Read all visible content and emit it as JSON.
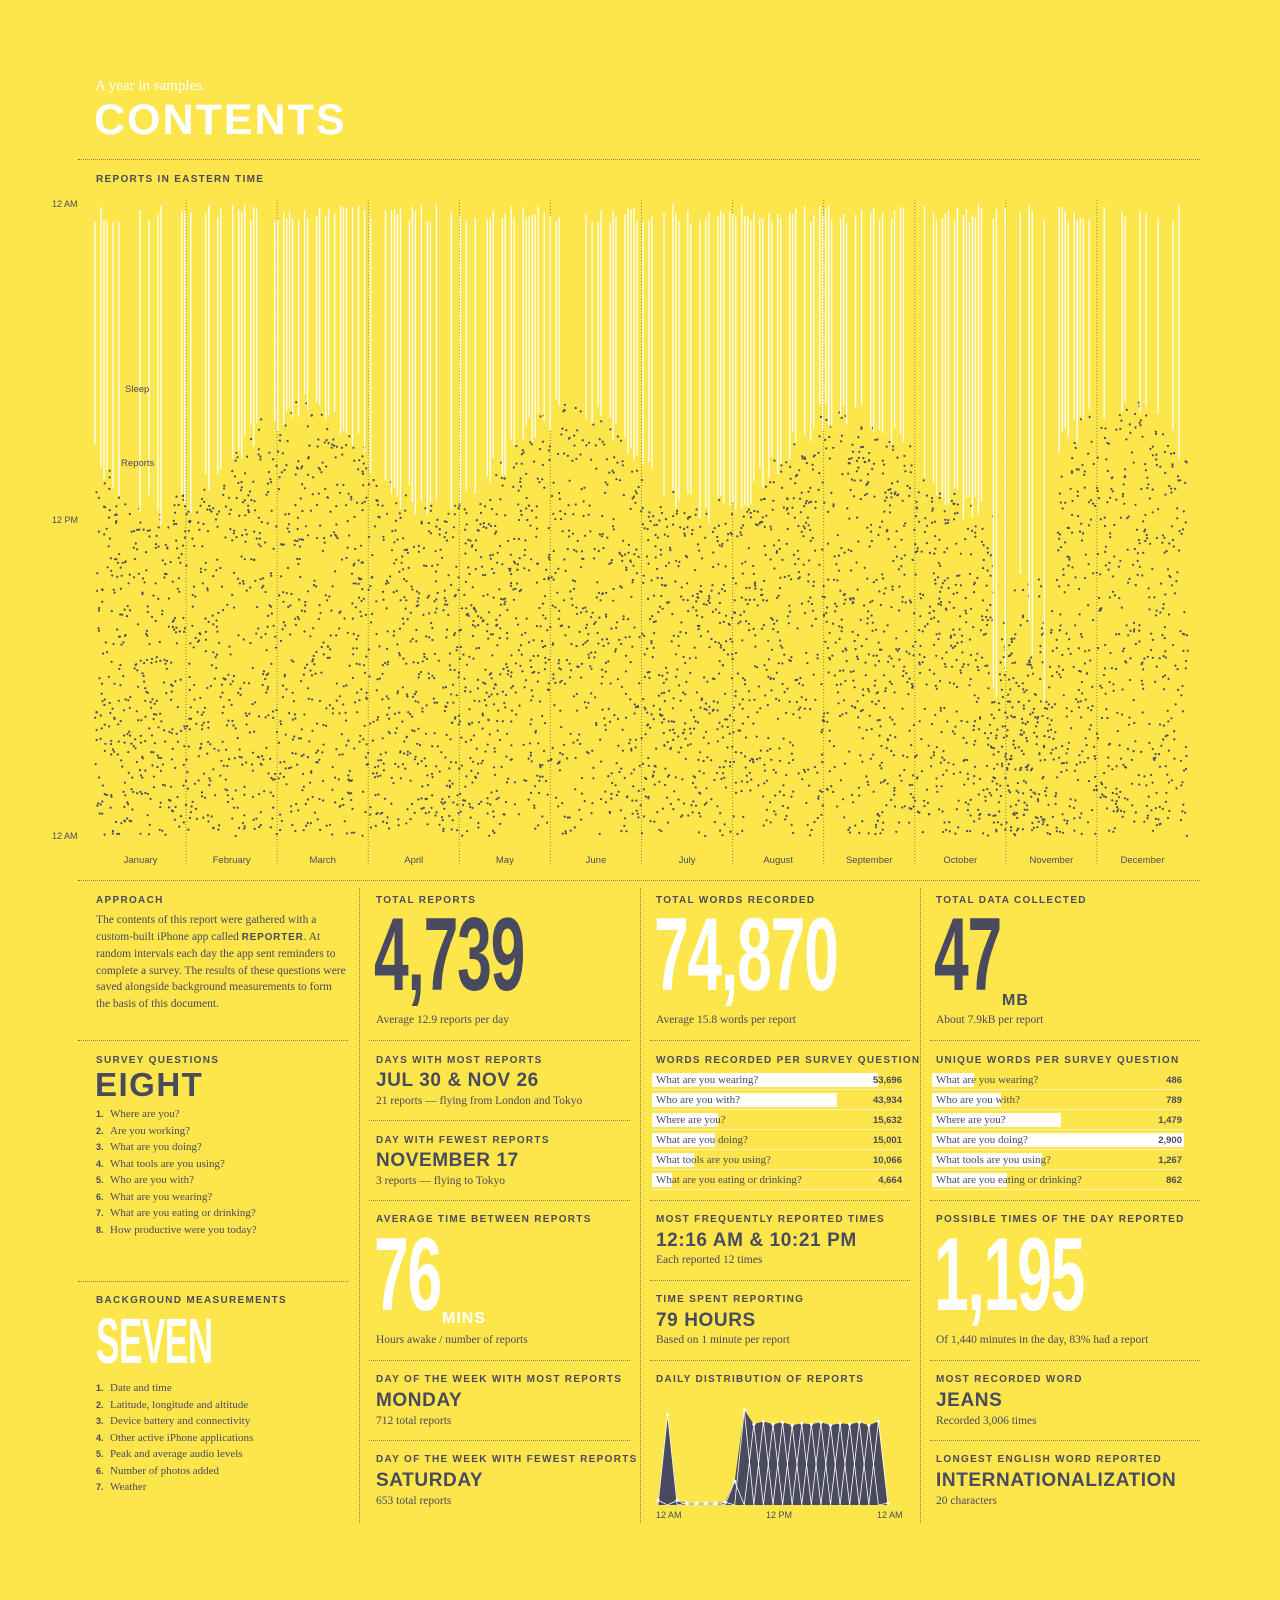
{
  "header": {
    "subtitle": "A year in samples.",
    "title": "CONTENTS"
  },
  "timeline": {
    "label": "REPORTS IN EASTERN TIME",
    "y_labels": [
      "12 AM",
      "12 PM",
      "12 AM"
    ],
    "months": [
      "January",
      "February",
      "March",
      "April",
      "May",
      "June",
      "July",
      "August",
      "September",
      "October",
      "November",
      "December"
    ],
    "legend_sleep": "Sleep",
    "legend_reports": "Reports"
  },
  "approach": {
    "label": "APPROACH",
    "text_a": "The contents of this report were gathered with a custom-built iPhone app called ",
    "app_name": "REPORTER",
    "text_b": ". At random intervals each day the app sent reminders to complete a survey. The results of these questions were saved alongside background measurements to form the basis of this document."
  },
  "survey": {
    "label": "SURVEY QUESTIONS",
    "count": "EIGHT",
    "items": [
      "Where are you?",
      "Are you working?",
      "What are you doing?",
      "What tools are you using?",
      "Who are you with?",
      "What are you wearing?",
      "What are you eating or drinking?",
      "How productive were you today?"
    ]
  },
  "background": {
    "label": "BACKGROUND MEASUREMENTS",
    "count": "SEVEN",
    "items": [
      "Date and time",
      "Latitude, longitude and altitude",
      "Device battery and connectivity",
      "Other active iPhone applications",
      "Peak and average audio levels",
      "Number of photos added",
      "Weather"
    ]
  },
  "total_reports": {
    "label": "TOTAL REPORTS",
    "value": "4,739",
    "note": "Average 12.9 reports per day"
  },
  "most_days": {
    "label": "DAYS WITH MOST REPORTS",
    "value": "JUL 30 & NOV 26",
    "note": "21 reports — flying from London and Tokyo"
  },
  "fewest_day": {
    "label": "DAY WITH FEWEST REPORTS",
    "value": "NOVEMBER 17",
    "note": "3 reports — flying to Tokyo"
  },
  "avg_time": {
    "label": "AVERAGE TIME BETWEEN REPORTS",
    "value": "76",
    "unit": "MINS",
    "note": "Hours awake / number of reports"
  },
  "dow_most": {
    "label": "DAY OF THE WEEK WITH MOST REPORTS",
    "value": "MONDAY",
    "note": "712 total reports"
  },
  "dow_fewest": {
    "label": "DAY OF THE WEEK WITH FEWEST REPORTS",
    "value": "SATURDAY",
    "note": "653 total reports"
  },
  "total_words": {
    "label": "TOTAL WORDS RECORDED",
    "value": "74,870",
    "note": "Average 15.8 words per report"
  },
  "words_per_q": {
    "label": "WORDS RECORDED PER SURVEY QUESTION",
    "rows": [
      {
        "q": "What are you wearing?",
        "v": "53,696",
        "n": 53696
      },
      {
        "q": "Who are you with?",
        "v": "43,934",
        "n": 43934
      },
      {
        "q": "Where are you?",
        "v": "15,632",
        "n": 15632
      },
      {
        "q": "What are you doing?",
        "v": "15,001",
        "n": 15001
      },
      {
        "q": "What tools are you using?",
        "v": "10,066",
        "n": 10066
      },
      {
        "q": "What are you eating or drinking?",
        "v": "4,664",
        "n": 4664
      }
    ]
  },
  "freq_times": {
    "label": "MOST FREQUENTLY REPORTED TIMES",
    "value": "12:16 AM & 10:21 PM",
    "note": "Each reported 12 times"
  },
  "time_spent": {
    "label": "TIME SPENT REPORTING",
    "value": "79 HOURS",
    "note": "Based on 1 minute per report"
  },
  "daily_dist": {
    "label": "DAILY DISTRIBUTION OF REPORTS",
    "x_labels": [
      "12 AM",
      "12 PM",
      "12 AM"
    ]
  },
  "total_data": {
    "label": "TOTAL DATA COLLECTED",
    "value": "47",
    "unit": "MB",
    "note": "About 7.9kB per report"
  },
  "unique_words": {
    "label": "UNIQUE WORDS PER SURVEY QUESTION",
    "rows": [
      {
        "q": "What are you wearing?",
        "v": "486",
        "n": 486
      },
      {
        "q": "Who are you with?",
        "v": "789",
        "n": 789
      },
      {
        "q": "Where are you?",
        "v": "1,479",
        "n": 1479
      },
      {
        "q": "What are you doing?",
        "v": "2,900",
        "n": 2900
      },
      {
        "q": "What tools are you using?",
        "v": "1,267",
        "n": 1267
      },
      {
        "q": "What are you eating or drinking?",
        "v": "862",
        "n": 862
      }
    ]
  },
  "possible_times": {
    "label": "POSSIBLE TIMES OF THE DAY REPORTED",
    "value": "1,195",
    "note": "Of 1,440 minutes in the day, 83% had a report"
  },
  "most_word": {
    "label": "MOST RECORDED WORD",
    "value": "JEANS",
    "note": "Recorded 3,006 times"
  },
  "longest_word": {
    "label": "LONGEST ENGLISH WORD REPORTED",
    "value": "INTERNATIONALIZATION",
    "note": "20 characters"
  },
  "colors": {
    "background": "#fce64c",
    "ink": "#4a4a5e",
    "white": "#ffffff"
  },
  "chart_data": [
    {
      "type": "scatter",
      "title": "REPORTS IN EASTERN TIME",
      "x": "days of year (January–December)",
      "ylim": [
        "12 AM",
        "12 AM"
      ],
      "series": [
        {
          "name": "Sleep"
        },
        {
          "name": "Reports"
        }
      ]
    },
    {
      "type": "area",
      "title": "DAILY DISTRIBUTION OF REPORTS",
      "categories": [
        "12 AM",
        "",
        "",
        "",
        "",
        "",
        "",
        "",
        "",
        "",
        "",
        "",
        "12 PM",
        "",
        "",
        "",
        "",
        "",
        "",
        "",
        "",
        "",
        "",
        "",
        "12 AM"
      ],
      "values": [
        0.05,
        0.95,
        0.05,
        0.02,
        0.02,
        0.02,
        0.02,
        0.03,
        0.25,
        1.0,
        0.85,
        0.88,
        0.85,
        0.87,
        0.84,
        0.86,
        0.85,
        0.87,
        0.84,
        0.86,
        0.85,
        0.87,
        0.84,
        0.88,
        0.02
      ]
    }
  ]
}
